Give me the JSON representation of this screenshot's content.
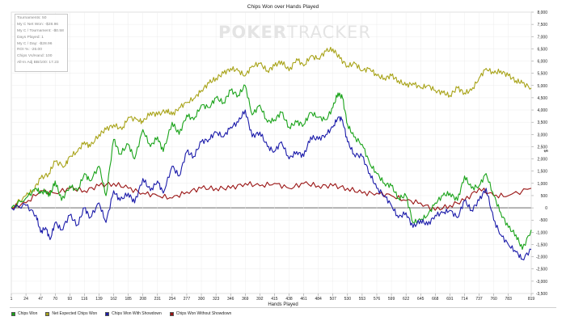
{
  "watermark": {
    "part1": "POKER",
    "part2": "TRACKER"
  },
  "stats": [
    "Tournaments: 50",
    "My C Net Won: -$28.96",
    "My C / Tournament: -$0.58",
    "Days Played: 1",
    "My C / Day: -$28.96",
    "ROI %: -26.00",
    "Chips Vs/Hand: 100",
    "All-In Adj BB/100: 17.23"
  ],
  "chart_data": {
    "type": "line",
    "title": "Chips Won over Hands Played",
    "xlabel": "Hands Played",
    "ylabel": "$",
    "xlim": [
      1,
      819
    ],
    "ylim": [
      -3500,
      8000
    ],
    "x_ticks": [
      1,
      24,
      47,
      70,
      93,
      116,
      139,
      162,
      185,
      208,
      231,
      254,
      277,
      300,
      323,
      346,
      369,
      392,
      415,
      438,
      461,
      484,
      507,
      530,
      553,
      576,
      599,
      622,
      645,
      668,
      691,
      714,
      737,
      760,
      783,
      819
    ],
    "y_ticks": [
      -3500,
      -3000,
      -2500,
      -2000,
      -1500,
      -1000,
      -500,
      0,
      500,
      1000,
      1500,
      2000,
      2500,
      3000,
      3500,
      4000,
      4500,
      5000,
      5500,
      6000,
      6500,
      7000,
      7500,
      8000
    ],
    "y_tick_labels": [
      "-3,500",
      "-3,000",
      "-2,500",
      "-2,000",
      "-1,500",
      "-1,000",
      "-500",
      "0",
      "500",
      "1,000",
      "1,500",
      "2,000",
      "2,500",
      "3,000",
      "3,500",
      "4,000",
      "4,500",
      "5,000",
      "5,500",
      "6,000",
      "6,500",
      "7,000",
      "7,500",
      "8,000"
    ],
    "grid": true,
    "legend_position": "bottom",
    "series": [
      {
        "name": "Chips Won",
        "color": "#1aa31a",
        "x": [
          1,
          24,
          40,
          47,
          55,
          62,
          70,
          80,
          93,
          105,
          116,
          125,
          139,
          150,
          162,
          172,
          185,
          195,
          208,
          220,
          231,
          240,
          254,
          265,
          277,
          288,
          300,
          312,
          323,
          335,
          346,
          358,
          369,
          380,
          392,
          404,
          415,
          426,
          438,
          450,
          461,
          472,
          484,
          496,
          507,
          515,
          522,
          530,
          540,
          553,
          565,
          576,
          588,
          599,
          610,
          622,
          633,
          645,
          656,
          668,
          680,
          691,
          703,
          714,
          725,
          737,
          748,
          760,
          771,
          783,
          795,
          805,
          819
        ],
        "y": [
          0,
          400,
          800,
          600,
          700,
          500,
          1100,
          300,
          900,
          700,
          1400,
          1100,
          1700,
          500,
          2800,
          2200,
          2600,
          2000,
          3200,
          2500,
          2900,
          2300,
          3500,
          3000,
          3800,
          3600,
          4200,
          4100,
          4500,
          4300,
          4800,
          4600,
          5000,
          3800,
          4200,
          3500,
          3600,
          3900,
          3300,
          3500,
          3400,
          3900,
          3700,
          3600,
          4100,
          4700,
          4500,
          3400,
          2900,
          2600,
          1800,
          1400,
          1000,
          900,
          400,
          500,
          -600,
          -500,
          -300,
          200,
          500,
          600,
          300,
          1300,
          800,
          900,
          1400,
          500,
          -200,
          -800,
          -1100,
          -1700,
          -900
        ]
      },
      {
        "name": "Net Expected Chips Won",
        "color": "#a8a318",
        "x": [
          1,
          24,
          35,
          47,
          60,
          70,
          85,
          93,
          105,
          116,
          125,
          139,
          150,
          162,
          175,
          185,
          200,
          208,
          220,
          231,
          245,
          254,
          265,
          277,
          290,
          300,
          312,
          323,
          335,
          346,
          358,
          369,
          380,
          392,
          404,
          415,
          426,
          438,
          450,
          461,
          472,
          484,
          496,
          507,
          518,
          530,
          542,
          553,
          565,
          576,
          588,
          599,
          610,
          622,
          633,
          645,
          656,
          668,
          680,
          691,
          703,
          714,
          725,
          737,
          748,
          760,
          771,
          783,
          795,
          805,
          819
        ],
        "y": [
          0,
          500,
          700,
          1200,
          1400,
          1900,
          1700,
          2100,
          2300,
          2700,
          2500,
          3000,
          3200,
          3400,
          3200,
          3700,
          3600,
          3500,
          3900,
          3800,
          4000,
          3800,
          4100,
          4300,
          4500,
          4800,
          5100,
          5300,
          5500,
          5700,
          5600,
          5400,
          5800,
          5900,
          5600,
          5800,
          6000,
          5600,
          6100,
          5800,
          6200,
          6100,
          6400,
          6500,
          6100,
          5800,
          5900,
          5600,
          5700,
          5400,
          5300,
          5400,
          5200,
          5000,
          5100,
          4900,
          5000,
          4800,
          4700,
          4600,
          4900,
          4700,
          4800,
          5300,
          5700,
          5500,
          5600,
          5400,
          5200,
          5100,
          4900
        ]
      },
      {
        "name": "Chips Won With Showdown",
        "color": "#1c1caa",
        "x": [
          1,
          24,
          40,
          47,
          55,
          62,
          70,
          80,
          93,
          105,
          116,
          125,
          139,
          150,
          162,
          172,
          185,
          195,
          208,
          220,
          231,
          240,
          254,
          265,
          277,
          288,
          300,
          312,
          323,
          335,
          346,
          358,
          369,
          380,
          392,
          404,
          415,
          426,
          438,
          450,
          461,
          472,
          484,
          496,
          507,
          515,
          522,
          530,
          540,
          553,
          565,
          576,
          588,
          599,
          610,
          622,
          633,
          645,
          656,
          668,
          680,
          691,
          703,
          714,
          725,
          737,
          748,
          760,
          771,
          783,
          795,
          805,
          819
        ],
        "y": [
          0,
          100,
          -300,
          -1000,
          -800,
          -1300,
          -600,
          -900,
          -300,
          -700,
          0,
          -400,
          200,
          -600,
          700,
          300,
          600,
          200,
          1200,
          700,
          1100,
          600,
          1700,
          1300,
          2300,
          2100,
          2700,
          2800,
          3100,
          2900,
          3300,
          3500,
          4000,
          2900,
          3100,
          2500,
          2300,
          2700,
          2000,
          2300,
          2100,
          2900,
          2800,
          3000,
          3300,
          3700,
          3600,
          2700,
          2200,
          2100,
          1400,
          800,
          500,
          100,
          -400,
          -200,
          -800,
          -500,
          -700,
          -300,
          -200,
          -100,
          -400,
          300,
          -100,
          300,
          800,
          -500,
          -1100,
          -1500,
          -1800,
          -2100,
          -1700
        ]
      },
      {
        "name": "Chips Won Without Showdown",
        "color": "#991313",
        "x": [
          1,
          24,
          47,
          70,
          93,
          116,
          139,
          162,
          185,
          208,
          231,
          254,
          277,
          300,
          323,
          346,
          369,
          392,
          415,
          438,
          461,
          484,
          507,
          530,
          553,
          576,
          599,
          622,
          645,
          668,
          691,
          714,
          737,
          760,
          783,
          819
        ],
        "y": [
          0,
          200,
          700,
          600,
          800,
          700,
          900,
          1000,
          800,
          600,
          500,
          400,
          650,
          800,
          800,
          800,
          1000,
          900,
          1000,
          800,
          1000,
          900,
          900,
          800,
          600,
          600,
          500,
          300,
          200,
          -100,
          100,
          300,
          800,
          500,
          500,
          800
        ]
      }
    ]
  }
}
